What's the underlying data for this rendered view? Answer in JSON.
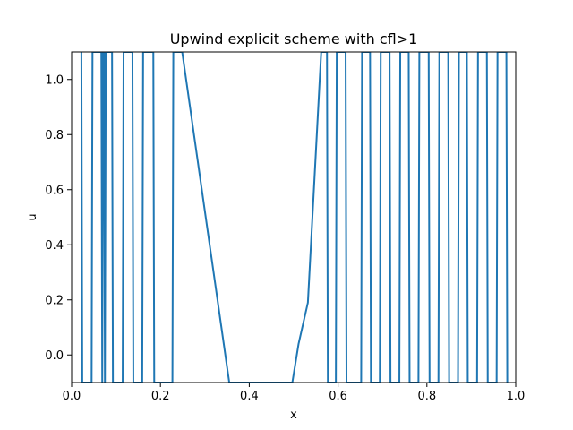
{
  "chart_data": {
    "type": "line",
    "title": "Upwind explicit scheme with cfl>1",
    "xlabel": "x",
    "ylabel": "u",
    "xlim": [
      0.0,
      1.0
    ],
    "ylim": [
      -0.1,
      1.1
    ],
    "xticks": [
      "0.0",
      "0.2",
      "0.4",
      "0.6",
      "0.8",
      "1.0"
    ],
    "yticks": [
      "0.0",
      "0.2",
      "0.4",
      "0.6",
      "0.8",
      "1.0"
    ],
    "xtick_values": [
      0.0,
      0.2,
      0.4,
      0.6,
      0.8,
      1.0
    ],
    "ytick_values": [
      0.0,
      0.2,
      0.4,
      0.6,
      0.8,
      1.0
    ],
    "grid": false,
    "color": "#1f77b4",
    "series": [
      {
        "x": [
          0.022,
          0.024,
          0.045,
          0.047,
          0.067,
          0.069,
          0.071,
          0.073,
          0.075,
          0.077,
          0.091,
          0.093,
          0.115,
          0.117,
          0.137,
          0.139,
          0.159,
          0.161,
          0.184,
          0.186,
          0.227,
          0.229,
          0.249,
          0.355,
          0.497,
          0.511,
          0.532,
          0.562,
          0.575,
          0.577,
          0.595,
          0.597,
          0.617,
          0.619,
          0.652,
          0.654,
          0.672,
          0.674,
          0.694,
          0.696,
          0.716,
          0.718,
          0.738,
          0.74,
          0.759,
          0.761,
          0.781,
          0.783,
          0.804,
          0.806,
          0.826,
          0.828,
          0.848,
          0.85,
          0.87,
          0.872,
          0.89,
          0.892,
          0.913,
          0.915,
          0.935,
          0.937,
          0.957,
          0.959,
          0.979,
          0.981
        ],
        "y": [
          1.1,
          -0.1,
          -0.1,
          1.1,
          1.1,
          -0.1,
          1.1,
          1.1,
          -0.1,
          1.1,
          1.1,
          -0.1,
          -0.1,
          1.1,
          1.1,
          -0.1,
          -0.1,
          1.1,
          1.1,
          -0.1,
          -0.1,
          1.1,
          1.1,
          -0.1,
          -0.1,
          0.04,
          0.19,
          1.1,
          1.1,
          -0.1,
          -0.1,
          1.1,
          1.1,
          -0.1,
          -0.1,
          1.1,
          1.1,
          -0.1,
          -0.1,
          1.1,
          1.1,
          -0.1,
          -0.1,
          1.1,
          1.1,
          -0.1,
          -0.1,
          1.1,
          1.1,
          -0.1,
          -0.1,
          1.1,
          1.1,
          -0.1,
          -0.1,
          1.1,
          1.1,
          -0.1,
          -0.1,
          1.1,
          1.1,
          -0.1,
          -0.1,
          1.1,
          1.1,
          -0.1
        ]
      }
    ]
  }
}
